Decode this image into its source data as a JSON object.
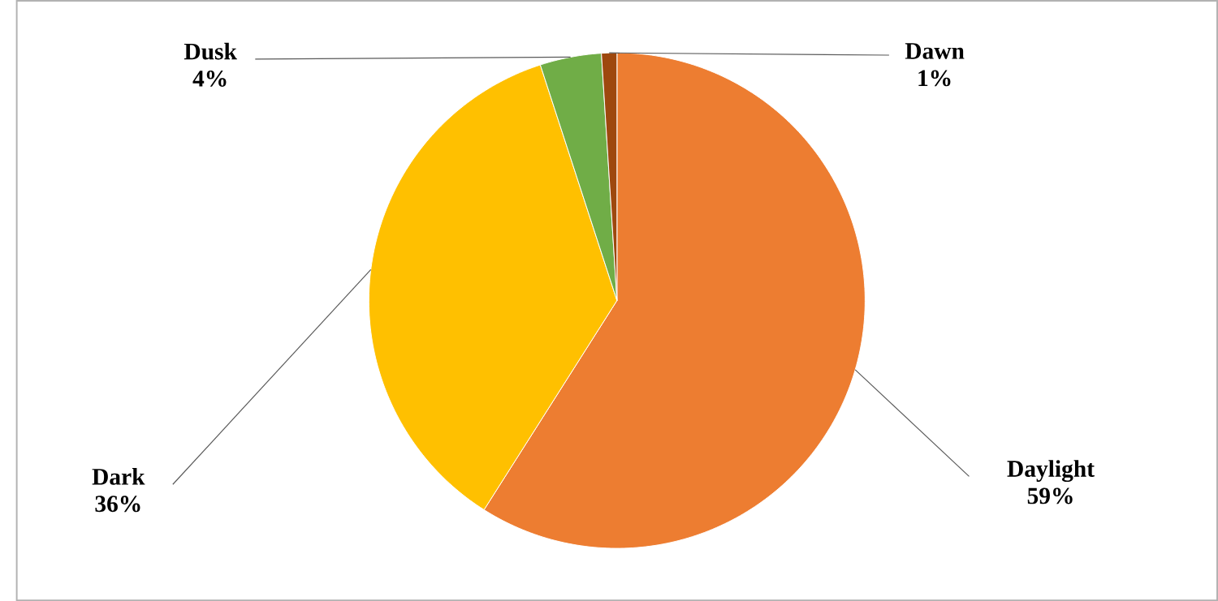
{
  "chart_data": {
    "type": "pie",
    "categories": [
      "Daylight",
      "Dark",
      "Dusk",
      "Dawn"
    ],
    "values": [
      59,
      36,
      4,
      1
    ],
    "value_labels": [
      "59%",
      "36%",
      "4%",
      "1%"
    ],
    "colors": [
      "#ed7d31",
      "#ffc000",
      "#70ad47",
      "#9e480e"
    ]
  }
}
